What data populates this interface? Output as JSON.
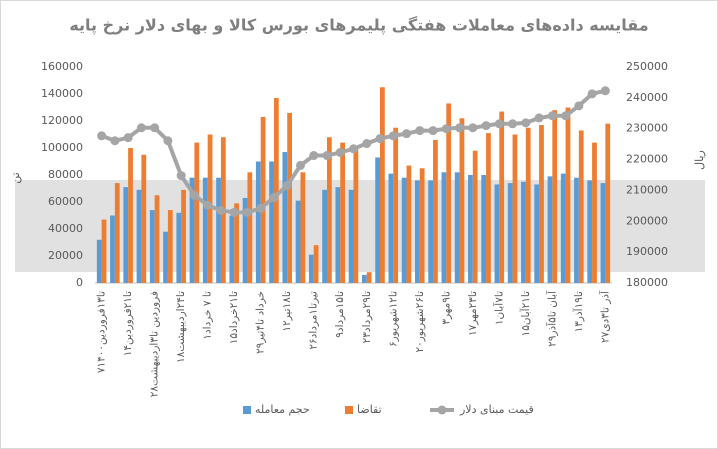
{
  "chart_data": {
    "type": "bar-line",
    "title": "مقایسه داده‌های معاملات هفتگی پلیمرهای بورس کالا و بهای دلار نرخ پایه",
    "y_label": "تن",
    "y2_label": "ریال",
    "categories": [
      "۷تا۱۳فروردین۱۴۰۰",
      null,
      "۱۴تا۲۱فروردین",
      null,
      "۲۸فروردین تا۳اردیبهشت",
      null,
      "۱۸تا۲۴اردیبهشت",
      null,
      "۱تا ۷ خرداد",
      null,
      "۱۵تا۲۱خرداد",
      null,
      "۲۹خرداد تا۴تیر",
      null,
      "۱۲تا۱۸تیر",
      null,
      "۲۶تیرتا۱مرداد",
      null,
      "۹تا۱۵مرداد",
      null,
      "۲۳تا۲۹مرداد",
      null,
      "۶تا۱۲شهریور",
      null,
      "۲۰تا۲۶شهریور",
      null,
      "۳تا۹مهر",
      null,
      "۱۷تا۲۳مهر",
      null,
      "۱تا۷آبان",
      null,
      "۱۵تا۲۱آبان",
      null,
      "۲۹آبان تا۵آذر",
      null,
      "۱۳تا۱۹آذر",
      null,
      "۲۷آذر تا۳دی"
    ],
    "series": [
      {
        "name": "حجم معامله",
        "color": "#5b9bd5",
        "kind": "bar",
        "values": [
          32000,
          50000,
          71000,
          69000,
          54000,
          38000,
          52000,
          78000,
          78000,
          78000,
          50000,
          63000,
          90000,
          90000,
          97000,
          61000,
          21000,
          69000,
          71000,
          69000,
          6000,
          93000,
          81000,
          78000,
          76000,
          76000,
          82000,
          82000,
          80000,
          80000,
          73000,
          74000,
          75000,
          73000,
          79000,
          81000,
          78000,
          76000,
          74000
        ]
      },
      {
        "name": "تقاضا",
        "color": "#ed7d31",
        "kind": "bar",
        "values": [
          47000,
          74000,
          100000,
          95000,
          65000,
          54000,
          69000,
          104000,
          110000,
          108000,
          59000,
          82000,
          123000,
          137000,
          126000,
          82000,
          28000,
          108000,
          104000,
          100000,
          8000,
          145000,
          115000,
          87000,
          85000,
          106000,
          133000,
          122000,
          98000,
          111000,
          127000,
          110000,
          115000,
          117000,
          128000,
          130000,
          113000,
          104000,
          118000
        ]
      },
      {
        "name": "قیمت مبنای دلار",
        "color": "#a5a5a5",
        "kind": "line",
        "axis": "y2",
        "values": [
          227700,
          226100,
          227100,
          230300,
          230300,
          226100,
          214800,
          208400,
          205200,
          203500,
          202900,
          202900,
          204200,
          207700,
          211600,
          218100,
          221300,
          221300,
          222300,
          223500,
          225200,
          226800,
          227700,
          228400,
          229400,
          229400,
          230000,
          230300,
          230300,
          231000,
          231600,
          231600,
          231900,
          233500,
          234200,
          234200,
          237400,
          241300,
          242300
        ]
      }
    ],
    "ylim": [
      0,
      160000
    ],
    "yticks": [
      0,
      20000,
      40000,
      60000,
      80000,
      100000,
      120000,
      140000,
      160000
    ],
    "y2lim": [
      180000,
      250000
    ],
    "y2ticks": [
      180000,
      190000,
      200000,
      210000,
      220000,
      230000,
      240000,
      250000
    ],
    "grid": false,
    "legend": "bottom"
  }
}
